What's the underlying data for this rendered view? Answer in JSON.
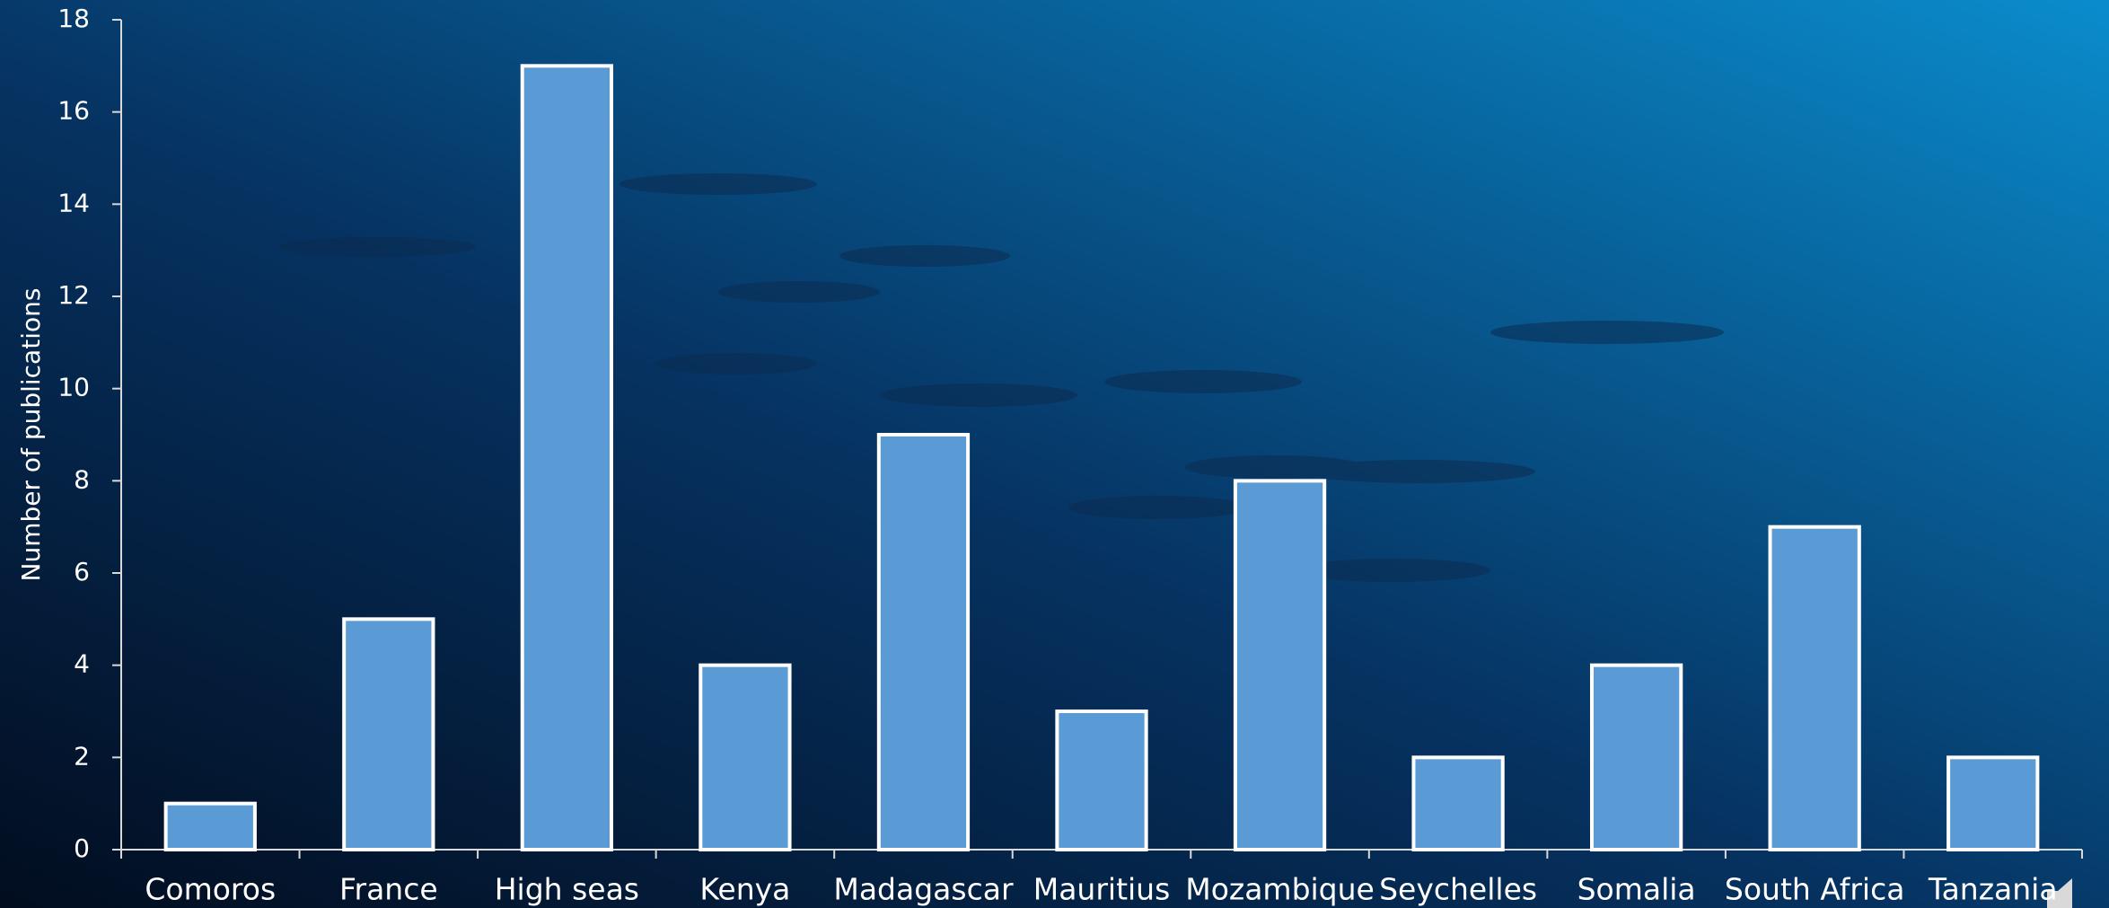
{
  "chart_data": {
    "type": "bar",
    "y_label": "Number of publications",
    "categories": [
      "Comoros",
      "France",
      "High seas",
      "Kenya",
      "Madagascar",
      "Mauritius",
      "Mozambique",
      "Seychelles",
      "Somalia",
      "South Africa",
      "Tanzania"
    ],
    "values": [
      1,
      5,
      17,
      4,
      9,
      3,
      8,
      2,
      4,
      7,
      2
    ],
    "color": "#5b9bd5",
    "ylim": [
      0,
      18
    ],
    "yticks": [
      0,
      2,
      4,
      6,
      8,
      10,
      12,
      14,
      16,
      18
    ],
    "grid": false
  }
}
